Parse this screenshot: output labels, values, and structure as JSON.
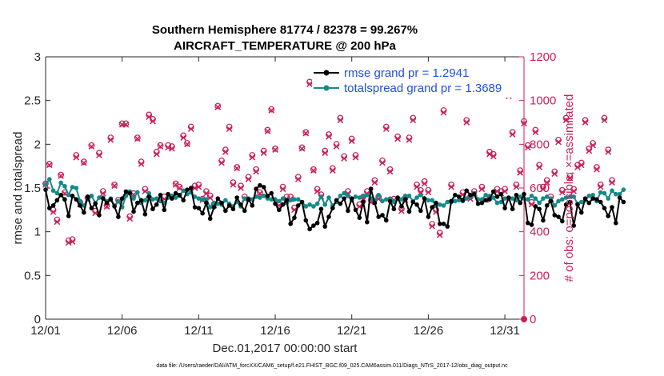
{
  "chart_data": {
    "type": "line",
    "title": "Southern Hemisphere 81774 / 82378 = 99.267%",
    "subtitle": "AIRCRAFT_TEMPERATURE @ 200 hPa",
    "xlabel": "Dec.01,2017 00:00:00 start",
    "ylabel_left": "rmse and totalspread",
    "ylabel_right": "# of obs: o=possible; ×=assimilated",
    "ylim_left": [
      0,
      3
    ],
    "ylim_right": [
      0,
      1200
    ],
    "xlim": [
      0,
      31.25
    ],
    "x_ticks": [
      {
        "value": 0,
        "label": "12/01"
      },
      {
        "value": 5,
        "label": "12/06"
      },
      {
        "value": 10,
        "label": "12/11"
      },
      {
        "value": 15,
        "label": "12/16"
      },
      {
        "value": 20,
        "label": "12/21"
      },
      {
        "value": 25,
        "label": "12/26"
      },
      {
        "value": 30,
        "label": "12/31"
      }
    ],
    "y_ticks_left": [
      {
        "value": 0,
        "label": "0"
      },
      {
        "value": 0.5,
        "label": "0.5"
      },
      {
        "value": 1,
        "label": "1"
      },
      {
        "value": 1.5,
        "label": "1.5"
      },
      {
        "value": 2,
        "label": "2"
      },
      {
        "value": 2.5,
        "label": "2.5"
      },
      {
        "value": 3,
        "label": "3"
      }
    ],
    "y_ticks_right": [
      {
        "value": 0,
        "label": "0"
      },
      {
        "value": 200,
        "label": "200"
      },
      {
        "value": 400,
        "label": "400"
      },
      {
        "value": 600,
        "label": "600"
      },
      {
        "value": 800,
        "label": "800"
      },
      {
        "value": 1000,
        "label": "1000"
      },
      {
        "value": 1200,
        "label": "1200"
      }
    ],
    "x_step": 0.25,
    "series": [
      {
        "name": "rmse grand pr = 1.2941",
        "axis": "left",
        "color": "#000000",
        "values": [
          1.48,
          1.27,
          1.3,
          1.36,
          1.42,
          1.37,
          1.18,
          1.41,
          1.37,
          1.3,
          1.22,
          1.4,
          1.27,
          1.32,
          1.19,
          1.38,
          1.33,
          1.37,
          1.29,
          1.17,
          1.38,
          1.46,
          1.44,
          1.23,
          1.33,
          1.36,
          1.2,
          1.4,
          1.26,
          1.31,
          1.42,
          1.25,
          1.43,
          1.38,
          1.44,
          1.42,
          1.36,
          1.48,
          1.5,
          1.28,
          1.27,
          1.21,
          1.33,
          1.15,
          1.28,
          1.38,
          1.33,
          1.24,
          1.3,
          1.26,
          1.39,
          1.31,
          1.24,
          1.37,
          1.3,
          1.49,
          1.53,
          1.51,
          1.41,
          1.44,
          1.32,
          1.25,
          1.31,
          1.36,
          1.09,
          1.16,
          1.3,
          1.34,
          1.13,
          1.03,
          1.07,
          1.1,
          1.26,
          1.06,
          1.17,
          1.27,
          1.36,
          1.32,
          1.38,
          1.24,
          1.38,
          1.25,
          1.16,
          1.34,
          1.11,
          1.49,
          1.33,
          1.17,
          1.19,
          1.13,
          1.35,
          1.26,
          1.39,
          1.29,
          1.37,
          1.23,
          1.34,
          1.31,
          1.24,
          1.38,
          1.17,
          1.28,
          1.33,
          1.09,
          1.09,
          1.06,
          1.35,
          1.42,
          1.4,
          1.36,
          1.47,
          1.42,
          1.43,
          1.32,
          1.33,
          1.36,
          1.37,
          1.46,
          1.4,
          1.43,
          1.27,
          1.39,
          1.26,
          1.42,
          1.33,
          1.43,
          1.1,
          1.08,
          1.29,
          1.26,
          1.13,
          1.3,
          1.35,
          1.19,
          1.17,
          1.12,
          1.31,
          1.34,
          1.07,
          1.31,
          1.22,
          1.38,
          1.33,
          1.38,
          1.37,
          1.34,
          1.27,
          1.18,
          1.28,
          1.1,
          1.39,
          1.34
        ]
      },
      {
        "name": "totalspread grand pr = 1.3689",
        "axis": "left",
        "color": "#138a8a",
        "values": [
          1.54,
          1.6,
          1.47,
          1.44,
          1.56,
          1.52,
          1.42,
          1.51,
          1.5,
          1.35,
          1.3,
          1.37,
          1.41,
          1.33,
          1.39,
          1.39,
          1.35,
          1.38,
          1.3,
          1.35,
          1.28,
          1.41,
          1.46,
          1.38,
          1.45,
          1.33,
          1.36,
          1.44,
          1.37,
          1.38,
          1.35,
          1.33,
          1.39,
          1.41,
          1.39,
          1.41,
          1.47,
          1.43,
          1.45,
          1.4,
          1.38,
          1.37,
          1.37,
          1.28,
          1.33,
          1.32,
          1.31,
          1.36,
          1.32,
          1.29,
          1.34,
          1.29,
          1.38,
          1.38,
          1.37,
          1.4,
          1.39,
          1.41,
          1.38,
          1.37,
          1.37,
          1.35,
          1.38,
          1.33,
          1.36,
          1.37,
          1.37,
          1.34,
          1.29,
          1.31,
          1.29,
          1.32,
          1.4,
          1.31,
          1.39,
          1.3,
          1.34,
          1.41,
          1.44,
          1.41,
          1.36,
          1.4,
          1.39,
          1.41,
          1.42,
          1.38,
          1.36,
          1.42,
          1.35,
          1.37,
          1.38,
          1.34,
          1.38,
          1.37,
          1.41,
          1.41,
          1.35,
          1.39,
          1.42,
          1.38,
          1.36,
          1.36,
          1.3,
          1.31,
          1.3,
          1.34,
          1.34,
          1.35,
          1.36,
          1.35,
          1.38,
          1.4,
          1.44,
          1.37,
          1.37,
          1.42,
          1.41,
          1.39,
          1.33,
          1.34,
          1.38,
          1.38,
          1.38,
          1.36,
          1.4,
          1.38,
          1.37,
          1.41,
          1.38,
          1.33,
          1.38,
          1.4,
          1.38,
          1.3,
          1.35,
          1.37,
          1.39,
          1.4,
          1.4,
          1.32,
          1.34,
          1.36,
          1.41,
          1.42,
          1.35,
          1.45,
          1.44,
          1.38,
          1.47,
          1.43,
          1.43,
          1.48
        ]
      },
      {
        "name": "# obs possible",
        "axis": "right",
        "color": "#cc1f5a",
        "marker": "circle",
        "values": [
          620,
          710,
          500,
          455,
          660,
          580,
          360,
          365,
          750,
          535,
          720,
          555,
          795,
          495,
          760,
          585,
          520,
          830,
          615,
          545,
          895,
          895,
          470,
          575,
          830,
          720,
          595,
          935,
          915,
          765,
          795,
          560,
          795,
          790,
          620,
          605,
          840,
          805,
          880,
          610,
          615,
          550,
          585,
          565,
          525,
          975,
          725,
          775,
          880,
          625,
          695,
          610,
          560,
          650,
          750,
          685,
          580,
          770,
          865,
          960,
          780,
          530,
          605,
          560,
          560,
          510,
          650,
          785,
          855,
          1085,
          685,
          595,
          570,
          770,
          845,
          690,
          800,
          920,
          745,
          585,
          825,
          750,
          525,
          560,
          585,
          545,
          635,
          560,
          725,
          880,
          685,
          550,
          835,
          505,
          555,
          830,
          920,
          615,
          590,
          630,
          590,
          435,
          500,
          395,
          955,
          1115,
          615,
          1040,
          1050,
          580,
          910,
          560,
          585,
          1040,
          605,
          550,
          765,
          755,
          595,
          585,
          595,
          1030,
          855,
          615,
          680,
          905,
          795,
          535,
          865,
          705,
          605,
          635,
          560,
          675,
          820,
          590,
          920,
          655,
          595,
          705,
          715,
          910,
          780,
          805,
          695,
          615,
          920,
          775,
          635
        ]
      },
      {
        "name": "# obs assimilated",
        "axis": "right",
        "color": "#cc1f5a",
        "marker": "x",
        "values": [
          615,
          705,
          490,
          445,
          655,
          575,
          350,
          355,
          740,
          525,
          715,
          550,
          790,
          485,
          750,
          575,
          515,
          820,
          610,
          535,
          890,
          890,
          460,
          570,
          825,
          710,
          585,
          925,
          905,
          755,
          790,
          550,
          785,
          780,
          615,
          600,
          830,
          800,
          870,
          600,
          605,
          545,
          575,
          555,
          520,
          970,
          715,
          765,
          870,
          615,
          690,
          600,
          550,
          640,
          740,
          675,
          575,
          760,
          860,
          955,
          775,
          520,
          595,
          550,
          550,
          500,
          640,
          780,
          850,
          1075,
          680,
          585,
          560,
          760,
          835,
          680,
          790,
          910,
          735,
          575,
          815,
          740,
          515,
          550,
          575,
          535,
          625,
          550,
          715,
          870,
          675,
          545,
          825,
          495,
          545,
          820,
          910,
          605,
          580,
          620,
          580,
          425,
          490,
          385,
          945,
          1105,
          605,
          1030,
          1040,
          570,
          900,
          550,
          575,
          1030,
          595,
          545,
          755,
          745,
          585,
          575,
          585,
          1020,
          845,
          605,
          670,
          895,
          785,
          525,
          855,
          695,
          595,
          625,
          550,
          665,
          810,
          580,
          910,
          645,
          585,
          695,
          705,
          900,
          770,
          795,
          685,
          605,
          910,
          765,
          625
        ]
      }
    ],
    "final_obs_value": 0,
    "legend": {
      "position": "top-right"
    }
  },
  "footer": "data file: /Users/raeder/DAI/ATM_forcXX/CAM6_setup/f.e21.FHIST_BGC.f09_025.CAM6assim.011/Diags_NTrS_2017-12/obs_diag_output.nc"
}
